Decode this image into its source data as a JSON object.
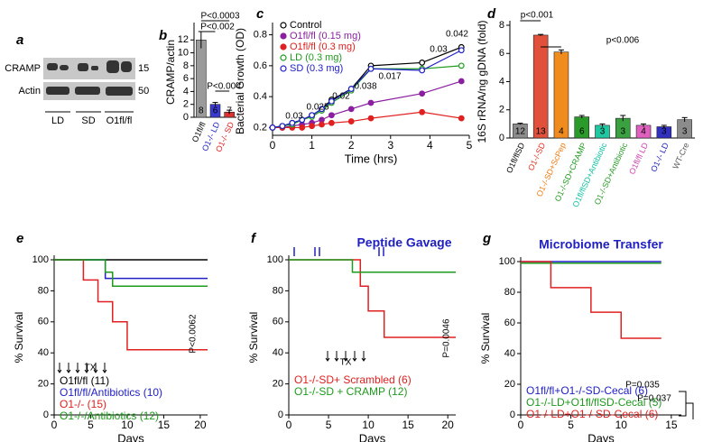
{
  "chart_data": [
    {
      "type": "blot",
      "panel": "a",
      "labels": [
        "CRAMP",
        "Actin"
      ],
      "markers": [
        15,
        50
      ],
      "lanes": [
        "LD",
        "SD",
        "O1fl/fl"
      ]
    },
    {
      "type": "bar",
      "panel": "b",
      "ylabel": "CRAMP/actin",
      "categories": [
        "O1fl/fl",
        "O1-/- LD",
        "O1-/- SD"
      ],
      "values": [
        12,
        2,
        0.8
      ],
      "errors": [
        1.3,
        0.3,
        0.3
      ],
      "n": [
        8,
        6,
        7
      ],
      "colors": [
        "#9a9a9a",
        "#3a3ad0",
        "#e03030"
      ],
      "label_colors": [
        "#000000",
        "#2020c0",
        "#e02020"
      ],
      "ylim": [
        0,
        14
      ],
      "yticks": [
        0,
        2,
        4,
        6,
        8,
        10,
        12
      ],
      "annotations": [
        "P<0.0003",
        "P<0.002",
        "P<0.004"
      ]
    },
    {
      "type": "line",
      "panel": "c",
      "xlabel": "Time (hrs)",
      "ylabel": "Bacterial Growth (OD)",
      "x": [
        0,
        0.25,
        0.5,
        0.75,
        1,
        1.25,
        1.5,
        2,
        2.5,
        3.8,
        4.8
      ],
      "xlim": [
        0,
        5
      ],
      "xticks": [
        0,
        1,
        2,
        3,
        4,
        5
      ],
      "ylim": [
        0.15,
        0.85
      ],
      "yticks": [
        0.2,
        0.4,
        0.6,
        0.8
      ],
      "series": [
        {
          "name": "Control",
          "color": "#000000",
          "marker": "open",
          "values": [
            0.2,
            0.21,
            0.23,
            0.25,
            0.28,
            0.32,
            0.38,
            0.45,
            0.6,
            0.62,
            0.72
          ]
        },
        {
          "name": "O1fl/fl (0.15 mg)",
          "color": "#8a1fa0",
          "marker": "filled",
          "values": [
            0.2,
            0.2,
            0.21,
            0.22,
            0.23,
            0.25,
            0.28,
            0.32,
            0.36,
            0.42,
            0.5
          ]
        },
        {
          "name": "O1fl/fl (0.3 mg)",
          "color": "#e02020",
          "marker": "filled",
          "values": [
            0.2,
            0.2,
            0.2,
            0.2,
            0.21,
            0.22,
            0.23,
            0.24,
            0.26,
            0.3,
            0.26
          ]
        },
        {
          "name": "LD (0.3 mg)",
          "color": "#1e9a1e",
          "marker": "open",
          "values": [
            0.2,
            0.21,
            0.22,
            0.25,
            0.27,
            0.31,
            0.36,
            0.44,
            0.58,
            0.58,
            0.6
          ]
        },
        {
          "name": "SD (0.3 mg)",
          "color": "#2020c8",
          "marker": "open",
          "values": [
            0.2,
            0.21,
            0.23,
            0.25,
            0.28,
            0.32,
            0.37,
            0.45,
            0.58,
            0.57,
            0.7
          ]
        }
      ],
      "annotations": [
        "0.03",
        "0.025",
        "0.02",
        "0.038",
        "0.017",
        "0.03",
        "0.042"
      ]
    },
    {
      "type": "bar",
      "panel": "d",
      "ylabel": "16S rRNA/ng gDNA (fold)",
      "categories": [
        "O1fl/flSD",
        "O1-/-SD",
        "O1-/-SD+ScPep",
        "O1-/-SD+CRAMP",
        "O1fl/flSD+Antibiotic",
        "O1-/-SD+Antibiotic",
        "O1fl/fl LD",
        "O1-/- LD",
        "WT-Cre"
      ],
      "values": [
        1,
        7.3,
        6.1,
        1.5,
        0.9,
        1.4,
        0.9,
        0.8,
        1.3
      ],
      "errors": [
        0.05,
        0.05,
        0.15,
        0.1,
        0.1,
        0.2,
        0.1,
        0.1,
        0.15
      ],
      "n": [
        12,
        13,
        4,
        6,
        3,
        3,
        4,
        3,
        3
      ],
      "colors": [
        "#8c8c8c",
        "#e0503a",
        "#f08c1e",
        "#2a9a2a",
        "#1fc8a0",
        "#3aa040",
        "#e060c0",
        "#3030c0",
        "#8c8c8c"
      ],
      "label_colors": [
        "#000000",
        "#e03020",
        "#f07a10",
        "#1e9a1e",
        "#10c0a0",
        "#2a9a2a",
        "#d040b0",
        "#2020c0",
        "#555555"
      ],
      "ylim": [
        0,
        8
      ],
      "yticks": [
        0,
        2,
        4,
        6,
        8
      ],
      "annotations": [
        "p<0.001",
        "p<0.006"
      ]
    },
    {
      "type": "survival",
      "panel": "e",
      "xlabel": "Days",
      "ylabel": "% Survival",
      "xlim": [
        0,
        21
      ],
      "xticks": [
        0,
        5,
        10,
        15,
        20
      ],
      "ylim": [
        0,
        100
      ],
      "yticks": [
        0,
        20,
        40,
        60,
        80,
        100
      ],
      "series": [
        {
          "name": "O1fl/fl (11)",
          "color": "#000000",
          "x": [
            0,
            21
          ],
          "values": [
            100,
            100
          ]
        },
        {
          "name": "O1fl/fl/Antibiotics (10)",
          "color": "#2020c8",
          "x": [
            0,
            7,
            21
          ],
          "values": [
            100,
            88,
            88
          ]
        },
        {
          "name": "O1-/- (15)",
          "color": "#e02020",
          "x": [
            0,
            4,
            6,
            8,
            10,
            21
          ],
          "values": [
            100,
            87,
            73,
            60,
            42,
            42
          ]
        },
        {
          "name": "O1-/-/Antibiotics (12)",
          "color": "#1e9a1e",
          "x": [
            0,
            7,
            8,
            21
          ],
          "values": [
            100,
            92,
            83,
            83
          ]
        }
      ],
      "annotations": [
        "TX",
        "P<0.0062"
      ]
    },
    {
      "type": "survival",
      "panel": "f",
      "title": "Peptide Gavage",
      "xlabel": "Days",
      "ylabel": "% Survival",
      "xlim": [
        0,
        21
      ],
      "xticks": [
        0,
        5,
        10,
        15,
        20
      ],
      "ylim": [
        0,
        100
      ],
      "yticks": [
        0,
        20,
        40,
        60,
        80,
        100
      ],
      "series": [
        {
          "name": "O1-/-SD+ Scrambled (6)",
          "color": "#e02020",
          "x": [
            0,
            9,
            10,
            12,
            21
          ],
          "values": [
            100,
            83,
            67,
            50,
            50
          ]
        },
        {
          "name": "O1-/-SD + CRAMP (12)",
          "color": "#1e9a1e",
          "x": [
            0,
            8,
            21
          ],
          "values": [
            100,
            92,
            92
          ]
        }
      ],
      "annotations": [
        "TX",
        "P=0.0046"
      ]
    },
    {
      "type": "survival",
      "panel": "g",
      "title": "Microbiome Transfer",
      "xlabel": "Days",
      "ylabel": "% Survival",
      "xlim": [
        0,
        16
      ],
      "xticks": [
        0,
        5,
        10,
        15
      ],
      "ylim": [
        0,
        100
      ],
      "yticks": [
        0,
        20,
        40,
        60,
        80,
        100
      ],
      "series": [
        {
          "name": "O1fl/fl+O1-/-SD-Cecal (6)",
          "color": "#2020c8",
          "x": [
            0,
            14
          ],
          "values": [
            100,
            100
          ]
        },
        {
          "name": "O1-/-LD+O1fl/flSD-Cecal (5)",
          "color": "#1e9a1e",
          "x": [
            0,
            14
          ],
          "values": [
            99,
            99
          ]
        },
        {
          "name": "O1-/-LD+O1-/-SD-Cecal (6)",
          "color": "#e02020",
          "x": [
            0,
            3,
            7,
            10,
            14
          ],
          "values": [
            100,
            83,
            67,
            50,
            50
          ]
        }
      ],
      "annotations": [
        "P=0.035",
        "P=0.037"
      ]
    }
  ]
}
